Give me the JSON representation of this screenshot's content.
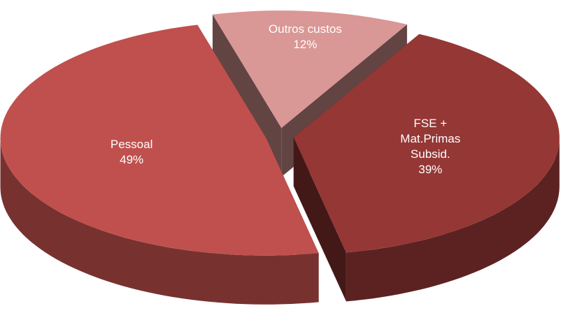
{
  "chart_data": {
    "type": "pie",
    "categories": [
      "Outros custos",
      "FSE + Mat.Primas Subsid.",
      "Pessoal"
    ],
    "values": [
      12,
      39,
      49
    ],
    "value_labels": [
      "12%",
      "39%",
      "49%"
    ],
    "colors": [
      "#d99795",
      "#953735",
      "#c0504d"
    ]
  }
}
